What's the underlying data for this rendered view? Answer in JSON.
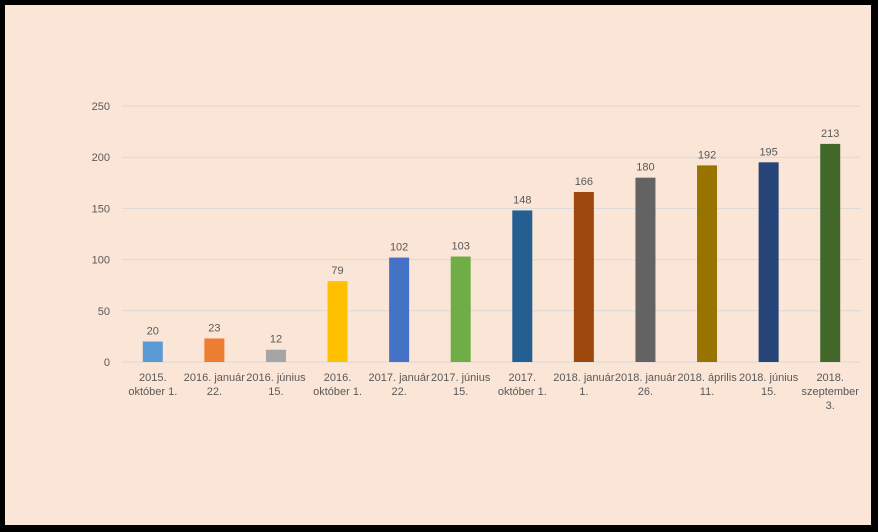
{
  "chart_data": {
    "type": "bar",
    "title": "",
    "xlabel": "",
    "ylabel": "",
    "ylim": [
      0,
      250
    ],
    "yticks": [
      0,
      50,
      100,
      150,
      200,
      250
    ],
    "grid": true,
    "legend": "none",
    "categories": [
      [
        "2015.",
        "október 1."
      ],
      [
        "2016. január",
        "22."
      ],
      [
        "2016. június",
        "15."
      ],
      [
        "2016.",
        "október 1."
      ],
      [
        "2017. január",
        "22."
      ],
      [
        "2017. június",
        "15."
      ],
      [
        "2017.",
        "október 1."
      ],
      [
        "2018. január",
        "1."
      ],
      [
        "2018. január",
        "26."
      ],
      [
        "2018. április",
        "11."
      ],
      [
        "2018. június",
        "15."
      ],
      [
        "2018.",
        "szeptember",
        "3."
      ]
    ],
    "values": [
      20,
      23,
      12,
      79,
      102,
      103,
      148,
      166,
      180,
      192,
      195,
      213
    ],
    "colors": [
      "#5b9bd5",
      "#ed7d31",
      "#a5a5a5",
      "#ffc000",
      "#4472c4",
      "#70ad47",
      "#255e91",
      "#9e480e",
      "#636363",
      "#997300",
      "#264478",
      "#43682b"
    ],
    "background": "#fbe5d6",
    "frame_color": "#000000",
    "gridline_color": "#d9d9d9",
    "label_color": "#595959"
  }
}
